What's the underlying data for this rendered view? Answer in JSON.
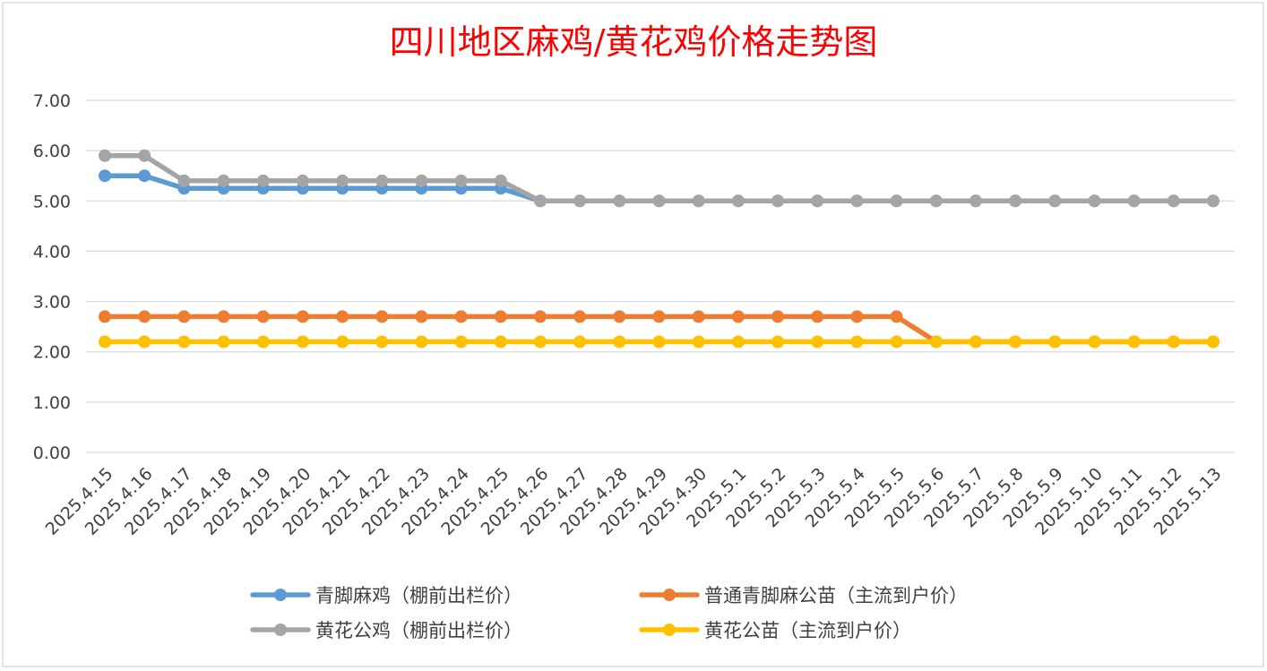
{
  "chart_data": {
    "type": "line",
    "title": "四川地区麻鸡/黄花鸡价格走势图",
    "xlabel": "",
    "ylabel": "",
    "ylim": [
      0,
      7
    ],
    "ytick_step": 1,
    "ytick_labels": [
      "0.00",
      "1.00",
      "2.00",
      "3.00",
      "4.00",
      "5.00",
      "6.00",
      "7.00"
    ],
    "grid": true,
    "legend_position": "bottom",
    "categories": [
      "2025.4.15",
      "2025.4.16",
      "2025.4.17",
      "2025.4.18",
      "2025.4.19",
      "2025.4.20",
      "2025.4.21",
      "2025.4.22",
      "2025.4.23",
      "2025.4.24",
      "2025.4.25",
      "2025.4.26",
      "2025.4.27",
      "2025.4.28",
      "2025.4.29",
      "2025.4.30",
      "2025.5.1",
      "2025.5.2",
      "2025.5.3",
      "2025.5.4",
      "2025.5.5",
      "2025.5.6",
      "2025.5.7",
      "2025.5.8",
      "2025.5.9",
      "2025.5.10",
      "2025.5.11",
      "2025.5.12",
      "2025.5.13"
    ],
    "series": [
      {
        "name": "青脚麻鸡（棚前出栏价）",
        "color": "#5b9bd5",
        "values": [
          5.5,
          5.5,
          5.25,
          5.25,
          5.25,
          5.25,
          5.25,
          5.25,
          5.25,
          5.25,
          5.25,
          5.0,
          5.0,
          5.0,
          5.0,
          5.0,
          5.0,
          5.0,
          5.0,
          5.0,
          5.0,
          5.0,
          5.0,
          5.0,
          5.0,
          5.0,
          5.0,
          5.0,
          5.0
        ]
      },
      {
        "name": "普通青脚麻公苗（主流到户价）",
        "color": "#ed7d31",
        "values": [
          2.7,
          2.7,
          2.7,
          2.7,
          2.7,
          2.7,
          2.7,
          2.7,
          2.7,
          2.7,
          2.7,
          2.7,
          2.7,
          2.7,
          2.7,
          2.7,
          2.7,
          2.7,
          2.7,
          2.7,
          2.7,
          2.2,
          2.2,
          2.2,
          2.2,
          2.2,
          2.2,
          2.2,
          2.2
        ]
      },
      {
        "name": "黄花公鸡（棚前出栏价）",
        "color": "#a5a5a5",
        "values": [
          5.9,
          5.9,
          5.4,
          5.4,
          5.4,
          5.4,
          5.4,
          5.4,
          5.4,
          5.4,
          5.4,
          5.0,
          5.0,
          5.0,
          5.0,
          5.0,
          5.0,
          5.0,
          5.0,
          5.0,
          5.0,
          5.0,
          5.0,
          5.0,
          5.0,
          5.0,
          5.0,
          5.0,
          5.0
        ]
      },
      {
        "name": "黄花公苗（主流到户价）",
        "color": "#ffc000",
        "values": [
          2.2,
          2.2,
          2.2,
          2.2,
          2.2,
          2.2,
          2.2,
          2.2,
          2.2,
          2.2,
          2.2,
          2.2,
          2.2,
          2.2,
          2.2,
          2.2,
          2.2,
          2.2,
          2.2,
          2.2,
          2.2,
          2.2,
          2.2,
          2.2,
          2.2,
          2.2,
          2.2,
          2.2,
          2.2
        ]
      }
    ],
    "draw_order": [
      1,
      3,
      0,
      2
    ],
    "colors": {
      "title": "#ff0000",
      "grid": "#d9d9d9",
      "text": "#404040",
      "border": "#d9d9d9"
    }
  }
}
